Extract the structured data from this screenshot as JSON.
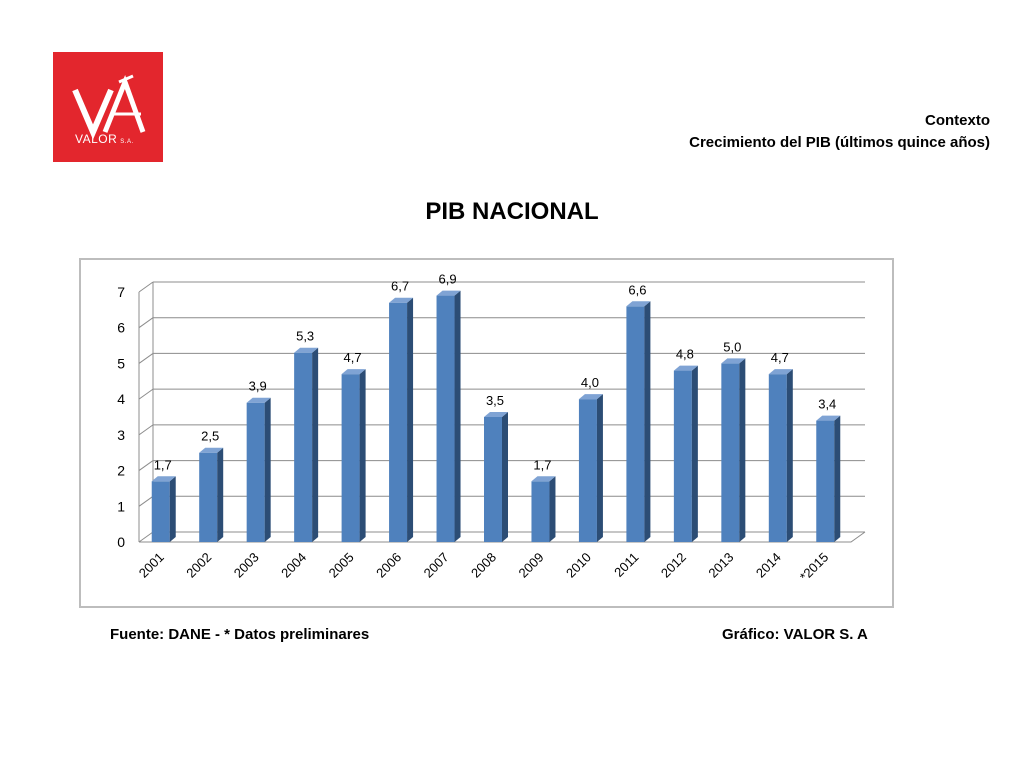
{
  "logo": {
    "company": "VALOR",
    "suffix": "S.A."
  },
  "header": {
    "context": "Contexto",
    "subtitle": "Crecimiento del PIB (últimos quince años)"
  },
  "colors": {
    "bar": "#4f81bd",
    "bar_side": "#2c4d75",
    "bar_top": "#7fa3d4",
    "logo_bg": "#e3262d"
  },
  "chart_data": {
    "type": "bar",
    "title": "PIB NACIONAL",
    "categories": [
      "2001",
      "2002",
      "2003",
      "2004",
      "2005",
      "2006",
      "2007",
      "2008",
      "2009",
      "2010",
      "2011",
      "2012",
      "2013",
      "2014",
      "*2015"
    ],
    "values": [
      1.7,
      2.5,
      3.9,
      5.3,
      4.7,
      6.7,
      6.9,
      3.5,
      1.7,
      4.0,
      6.6,
      4.8,
      5.0,
      4.7,
      3.4
    ],
    "data_labels": [
      "1,7",
      "2,5",
      "3,9",
      "5,3",
      "4,7",
      "6,7",
      "6,9",
      "3,5",
      "1,7",
      "4,0",
      "6,6",
      "4,8",
      "5,0",
      "4,7",
      "3,4"
    ],
    "yticks": [
      "0",
      "1",
      "2",
      "3",
      "4",
      "5",
      "6",
      "7"
    ],
    "ylim": [
      0,
      7
    ],
    "grid": true,
    "style": "3d-column"
  },
  "footer": {
    "source": "Fuente:  DANE - * Datos preliminares",
    "credit": "Gráfico:  VALOR S. A"
  }
}
